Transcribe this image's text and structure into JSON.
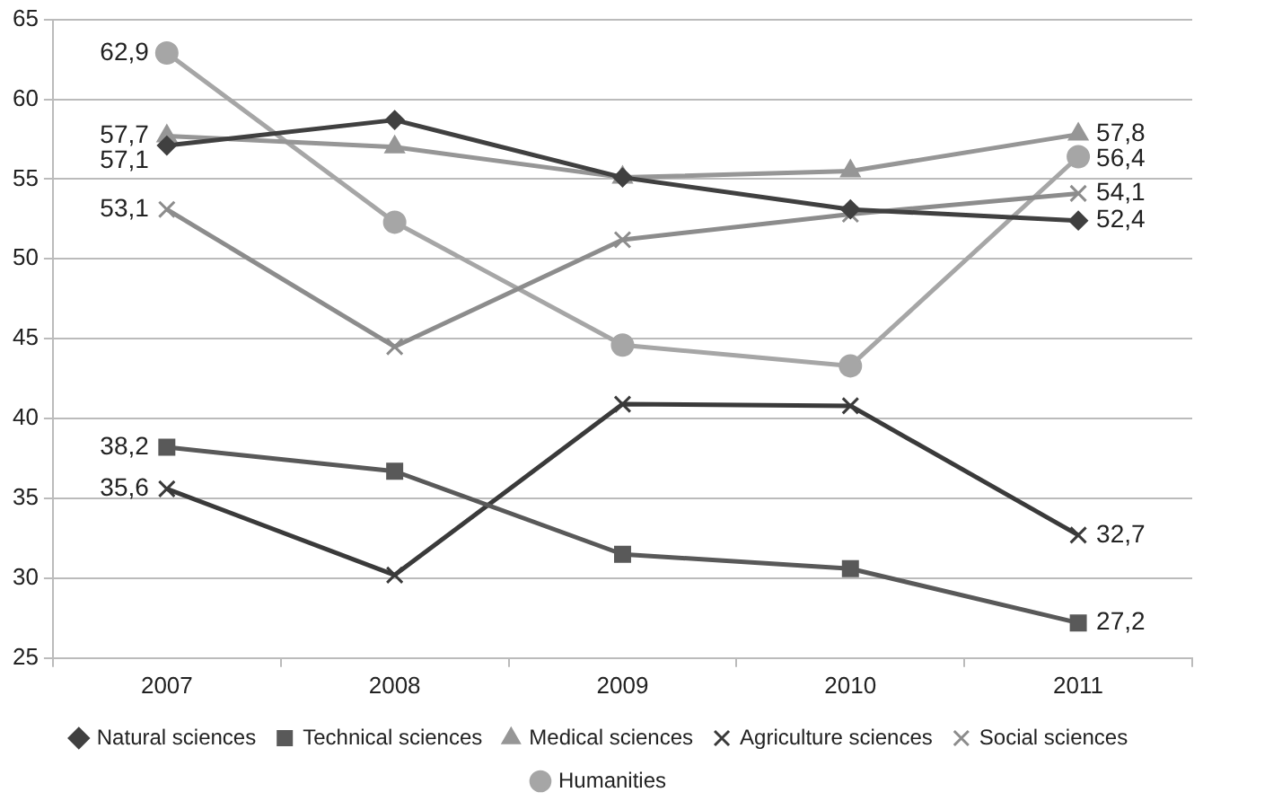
{
  "chart_data": {
    "type": "line",
    "categories": [
      "2007",
      "2008",
      "2009",
      "2010",
      "2011"
    ],
    "ylim": [
      25,
      65
    ],
    "yticks": [
      25,
      30,
      35,
      40,
      45,
      50,
      55,
      60,
      65
    ],
    "grid": "y",
    "legend": "bottom",
    "series": [
      {
        "name": "Natural sciences",
        "color": "#404040",
        "marker": "diamond",
        "values": [
          57.1,
          58.7,
          55.1,
          53.1,
          52.4
        ],
        "value_labels": [
          "57,1",
          null,
          null,
          null,
          "52,4"
        ]
      },
      {
        "name": "Technical sciences",
        "color": "#595959",
        "marker": "square",
        "values": [
          38.2,
          36.7,
          31.5,
          30.6,
          27.2
        ],
        "value_labels": [
          "38,2",
          null,
          null,
          null,
          "27,2"
        ]
      },
      {
        "name": "Medical sciences",
        "color": "#969696",
        "marker": "triangle",
        "values": [
          57.7,
          57.0,
          55.1,
          55.5,
          57.8
        ],
        "value_labels": [
          "57,7",
          null,
          null,
          null,
          "57,8"
        ]
      },
      {
        "name": "Agriculture sciences",
        "color": "#3a3a3a",
        "marker": "cross",
        "values": [
          35.6,
          30.2,
          40.9,
          40.8,
          32.7
        ],
        "value_labels": [
          "35,6",
          null,
          null,
          null,
          "32,7"
        ]
      },
      {
        "name": "Social sciences",
        "color": "#8c8c8c",
        "marker": "cross",
        "values": [
          53.1,
          44.5,
          51.2,
          52.8,
          54.1
        ],
        "value_labels": [
          "53,1",
          null,
          null,
          null,
          "54,1"
        ]
      },
      {
        "name": "Humanities",
        "color": "#a6a6a6",
        "marker": "circle",
        "values": [
          62.9,
          52.3,
          44.6,
          43.3,
          56.4
        ],
        "value_labels": [
          "62,9",
          null,
          null,
          null,
          "56,4"
        ]
      }
    ]
  }
}
